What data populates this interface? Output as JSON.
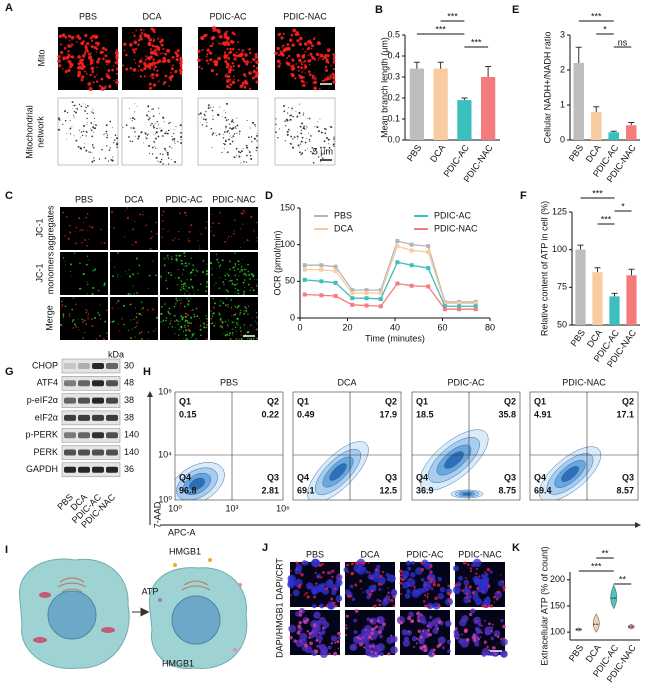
{
  "panel_letters": [
    "A",
    "B",
    "C",
    "D",
    "E",
    "F",
    "G",
    "H",
    "I",
    "J",
    "K"
  ],
  "panel_a": {
    "columns": [
      "PBS",
      "DCA",
      "PDIC-AC",
      "PDIC-NAC"
    ],
    "mito_label": "Mito",
    "network_label_lines": [
      "Mitochondrial",
      "network"
    ],
    "scale_bars": [
      "5 μm",
      "5 μm"
    ]
  },
  "panel_c": {
    "columns": [
      "PBS",
      "DCA",
      "PDIC-AC",
      "PDIC-NAC"
    ],
    "row_label_lines": [
      [
        "JC-1",
        "aggregates"
      ],
      [
        "JC-1",
        "monomers"
      ],
      [
        "Merge"
      ]
    ],
    "scale_bar": "25 μm"
  },
  "panel_g": {
    "unit": "kDa",
    "proteins": [
      {
        "name": "CHOP",
        "kda": 30
      },
      {
        "name": "ATF4",
        "kda": 48
      },
      {
        "name": "p-eIF2α",
        "kda": 38
      },
      {
        "name": "eIF2α",
        "kda": 38
      },
      {
        "name": "p-PERK",
        "kda": 140
      },
      {
        "name": "PERK",
        "kda": 140
      },
      {
        "name": "GAPDH",
        "kda": 36
      }
    ],
    "lanes": [
      "PBS",
      "DCA",
      "PDIC-AC",
      "PDIC-NAC"
    ]
  },
  "panel_h": {
    "y_label": "7-AAD",
    "x_label": "APC-A",
    "yticks": [
      "10⁶",
      "10⁴",
      "10⁰"
    ],
    "xticks": [
      "10⁰",
      "10³",
      "10⁶"
    ],
    "plots": [
      {
        "title": "PBS",
        "quadrants": [
          {
            "name": "Q1",
            "value": 0.15
          },
          {
            "name": "Q2",
            "value": 0.22
          },
          {
            "name": "Q3",
            "value": 2.81
          },
          {
            "name": "Q4",
            "value": 96.8
          }
        ]
      },
      {
        "title": "DCA",
        "quadrants": [
          {
            "name": "Q1",
            "value": 0.49
          },
          {
            "name": "Q2",
            "value": 17.9
          },
          {
            "name": "Q3",
            "value": 12.5
          },
          {
            "name": "Q4",
            "value": 69.1
          }
        ]
      },
      {
        "title": "PDIC-AC",
        "quadrants": [
          {
            "name": "Q1",
            "value": 18.5
          },
          {
            "name": "Q2",
            "value": 35.8
          },
          {
            "name": "Q3",
            "value": 8.75
          },
          {
            "name": "Q4",
            "value": 36.9
          }
        ]
      },
      {
        "title": "PDIC-NAC",
        "quadrants": [
          {
            "name": "Q1",
            "value": 4.91
          },
          {
            "name": "Q2",
            "value": 17.1
          },
          {
            "name": "Q3",
            "value": 8.57
          },
          {
            "name": "Q4",
            "value": 69.4
          }
        ]
      }
    ]
  },
  "panel_i": {
    "labels": [
      "HMGB1",
      "ATP",
      "HMGB1"
    ]
  },
  "panel_j": {
    "columns": [
      "PBS",
      "DCA",
      "PDIC-AC",
      "PDIC-NAC"
    ],
    "stain_label": "DAPI/HMGB1 DAPI/CRT",
    "scale_bar": "10 μm"
  },
  "chart_data": [
    {
      "type": "bar",
      "y_label": "Mean branch length (μm)",
      "categories": [
        "PBS",
        "DCA",
        "PDIC-AC",
        "PDIC-NAC"
      ],
      "values": [
        0.34,
        0.34,
        0.19,
        0.3
      ],
      "errors": [
        0.03,
        0.03,
        0.01,
        0.05
      ],
      "colors": [
        "#bdbdbd",
        "#f8cba0",
        "#3bbfbf",
        "#f47c7c"
      ],
      "ylim": [
        0,
        0.5
      ],
      "yticks": [
        {
          "value": 0,
          "label": "0.0"
        },
        0.1,
        0.2,
        0.3,
        0.4,
        0.5
      ],
      "comparisons": [
        {
          "label": "***",
          "groups": [
            "DCA",
            "PDIC-AC"
          ]
        },
        {
          "label": "***",
          "groups": [
            "PBS",
            "PDIC-AC"
          ]
        },
        {
          "label": "***",
          "groups": [
            "PDIC-AC",
            "PDIC-NAC"
          ]
        }
      ]
    },
    {
      "type": "bar",
      "y_label": "Cellular NADH+/NADH ratio",
      "categories": [
        "PBS",
        "DCA",
        "PDIC-AC",
        "PDIC-NAC"
      ],
      "values": [
        2.2,
        0.8,
        0.22,
        0.42
      ],
      "errors": [
        0.45,
        0.15,
        0.03,
        0.08
      ],
      "colors": [
        "#bdbdbd",
        "#f8cba0",
        "#3bbfbf",
        "#f47c7c"
      ],
      "ylim": [
        0,
        3
      ],
      "yticks": [
        0,
        1,
        2,
        3
      ],
      "comparisons": [
        {
          "label": "***",
          "groups": [
            "PBS",
            "PDIC-AC"
          ]
        },
        {
          "label": "*",
          "groups": [
            "DCA",
            "PDIC-AC"
          ]
        },
        {
          "label": "ns",
          "groups": [
            "PDIC-AC",
            "PDIC-NAC"
          ]
        }
      ]
    },
    {
      "type": "line",
      "y_label": "OCR (pmol/min)",
      "x_label": "Time (minutes)",
      "x": [
        2,
        9,
        15,
        22,
        28,
        34,
        41,
        47,
        54,
        61,
        67,
        74
      ],
      "series": [
        {
          "name": "PBS",
          "color": "#b5b5b5",
          "values": [
            72,
            72,
            70,
            38,
            38,
            38,
            105,
            100,
            98,
            22,
            22,
            22
          ]
        },
        {
          "name": "DCA",
          "color": "#f8cba0",
          "values": [
            66,
            66,
            64,
            34,
            34,
            34,
            98,
            92,
            90,
            20,
            20,
            20
          ]
        },
        {
          "name": "PDIC-AC",
          "color": "#3bbfbf",
          "values": [
            52,
            50,
            48,
            27,
            27,
            26,
            76,
            72,
            68,
            16,
            16,
            16
          ]
        },
        {
          "name": "PDIC-NAC",
          "color": "#f47c7c",
          "values": [
            32,
            31,
            30,
            18,
            17,
            16,
            47,
            44,
            43,
            12,
            12,
            12
          ]
        }
      ],
      "xlim": [
        0,
        80
      ],
      "xticks": [
        0,
        20,
        40,
        60,
        80
      ],
      "ylim": [
        0,
        150
      ],
      "yticks": [
        0,
        50,
        100,
        150
      ]
    },
    {
      "type": "bar",
      "y_label": "Relative content of ATP in cell (%)",
      "categories": [
        "PBS",
        "DCA",
        "PDIC-AC",
        "PDIC-NAC"
      ],
      "values": [
        100,
        85,
        69,
        83
      ],
      "errors": [
        3,
        3,
        2,
        4
      ],
      "colors": [
        "#bdbdbd",
        "#f8cba0",
        "#3bbfbf",
        "#f47c7c"
      ],
      "ylim": [
        50,
        125
      ],
      "yticks": [
        50,
        75,
        100,
        125
      ],
      "comparisons": [
        {
          "label": "***",
          "groups": [
            "PBS",
            "PDIC-AC"
          ]
        },
        {
          "label": "*",
          "groups": [
            "PDIC-AC",
            "PDIC-NAC"
          ]
        },
        {
          "label": "***",
          "groups": [
            "DCA",
            "PDIC-AC"
          ]
        }
      ]
    },
    {
      "type": "violin",
      "y_label": "Extracellular ATP (% of count)",
      "categories": [
        "PBS",
        "DCA",
        "PDIC-AC",
        "PDIC-NAC"
      ],
      "values": [
        105,
        115,
        165,
        110
      ],
      "min": [
        102,
        100,
        145,
        106
      ],
      "max": [
        108,
        135,
        190,
        115
      ],
      "colors": [
        "#bdbdbd",
        "#f8cba0",
        "#3bbfbf",
        "#f47c7c"
      ],
      "ylim": [
        85,
        215
      ],
      "yticks": [
        100,
        150,
        200
      ],
      "comparisons": [
        {
          "label": "**",
          "groups": [
            "DCA",
            "PDIC-AC"
          ]
        },
        {
          "label": "***",
          "groups": [
            "PBS",
            "PDIC-AC"
          ]
        },
        {
          "label": "**",
          "groups": [
            "PDIC-AC",
            "PDIC-NAC"
          ]
        }
      ]
    }
  ]
}
